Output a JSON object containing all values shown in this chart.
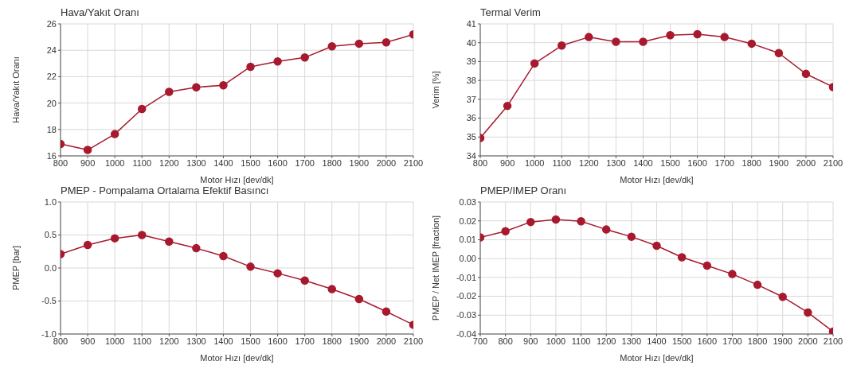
{
  "chart_data": [
    {
      "type": "line",
      "title": "Hava/Yakıt Oranı",
      "xlabel": "Motor Hızı [dev/dk]",
      "ylabel": "Hava/Yakıt Oranı",
      "x": [
        800,
        900,
        1000,
        1100,
        1200,
        1300,
        1400,
        1500,
        1600,
        1700,
        1800,
        1900,
        2000,
        2100
      ],
      "series": [
        {
          "color": "#a8192e",
          "values": [
            16.9,
            16.45,
            17.65,
            19.55,
            20.85,
            21.2,
            21.35,
            22.75,
            23.15,
            23.45,
            24.3,
            24.5,
            24.6,
            25.2
          ]
        }
      ],
      "xlim": [
        800,
        2100
      ],
      "xticks": [
        800,
        900,
        1000,
        1100,
        1200,
        1300,
        1400,
        1500,
        1600,
        1700,
        1800,
        1900,
        2000,
        2100
      ],
      "ylim": [
        16,
        26
      ],
      "yticks": [
        16,
        18,
        20,
        22,
        24,
        26
      ],
      "grid": true,
      "marker": "circle",
      "line_style": "solid"
    },
    {
      "type": "line",
      "title": "Termal Verim",
      "xlabel": "Motor Hızı [dev/dk]",
      "ylabel": "Verim [%]",
      "x": [
        800,
        900,
        1000,
        1100,
        1200,
        1300,
        1400,
        1500,
        1600,
        1700,
        1800,
        1900,
        2000,
        2100
      ],
      "series": [
        {
          "color": "#a8192e",
          "values": [
            34.95,
            36.65,
            38.9,
            39.85,
            40.3,
            40.05,
            40.05,
            40.4,
            40.45,
            40.3,
            39.95,
            39.45,
            38.35,
            37.65
          ]
        }
      ],
      "xlim": [
        800,
        2100
      ],
      "xticks": [
        800,
        900,
        1000,
        1100,
        1200,
        1300,
        1400,
        1500,
        1600,
        1700,
        1800,
        1900,
        2000,
        2100
      ],
      "ylim": [
        34,
        41
      ],
      "yticks": [
        34,
        35,
        36,
        37,
        38,
        39,
        40,
        41
      ],
      "grid": true,
      "marker": "circle",
      "line_style": "solid"
    },
    {
      "type": "line",
      "title": "PMEP - Pompalama Ortalama Efektif Basıncı",
      "xlabel": "Motor Hızı [dev/dk]",
      "ylabel": "PMEP [bar]",
      "x": [
        800,
        900,
        1000,
        1100,
        1200,
        1300,
        1400,
        1500,
        1600,
        1700,
        1800,
        1900,
        2000,
        2100
      ],
      "series": [
        {
          "color": "#a8192e",
          "values": [
            0.21,
            0.35,
            0.45,
            0.5,
            0.4,
            0.3,
            0.18,
            0.02,
            -0.08,
            -0.19,
            -0.32,
            -0.47,
            -0.66,
            -0.86
          ]
        }
      ],
      "xlim": [
        800,
        2100
      ],
      "xticks": [
        800,
        900,
        1000,
        1100,
        1200,
        1300,
        1400,
        1500,
        1600,
        1700,
        1800,
        1900,
        2000,
        2100
      ],
      "ylim": [
        -1,
        1
      ],
      "yticks": [
        {
          "value": -1,
          "label": "-1.0"
        },
        {
          "value": -0.5,
          "label": "-0.5"
        },
        {
          "value": 0,
          "label": "0.0"
        },
        {
          "value": 0.5,
          "label": "0.5"
        },
        {
          "value": 1,
          "label": "1.0"
        }
      ],
      "grid": true,
      "marker": "circle",
      "line_style": "solid"
    },
    {
      "type": "line",
      "title": "PMEP/IMEP Oranı",
      "xlabel": "Motor Hızı [dev/dk]",
      "ylabel": "PMEP / Net IMEP [fraction]",
      "x": [
        700,
        800,
        900,
        1000,
        1100,
        1200,
        1300,
        1400,
        1500,
        1600,
        1700,
        1800,
        1900,
        2000,
        2100
      ],
      "series": [
        {
          "color": "#a8192e",
          "values": [
            0.0112,
            0.0145,
            0.0194,
            0.0207,
            0.0198,
            0.0154,
            0.0116,
            0.0068,
            0.0007,
            -0.0037,
            -0.0082,
            -0.0139,
            -0.0203,
            -0.0286,
            -0.0387
          ]
        }
      ],
      "xlim": [
        700,
        2100
      ],
      "xticks": [
        700,
        800,
        900,
        1000,
        1100,
        1200,
        1300,
        1400,
        1500,
        1600,
        1700,
        1800,
        1900,
        2000,
        2100
      ],
      "ylim": [
        -0.04,
        0.03
      ],
      "yticks": [
        {
          "value": -0.04,
          "label": "-0.04"
        },
        {
          "value": -0.03,
          "label": "-0.03"
        },
        {
          "value": -0.02,
          "label": "-0.02"
        },
        {
          "value": -0.01,
          "label": "-0.01"
        },
        {
          "value": 0,
          "label": "0.00"
        },
        {
          "value": 0.01,
          "label": "0.01"
        },
        {
          "value": 0.02,
          "label": "0.02"
        },
        {
          "value": 0.03,
          "label": "0.03"
        }
      ],
      "grid": true,
      "marker": "circle",
      "line_style": "solid"
    }
  ]
}
